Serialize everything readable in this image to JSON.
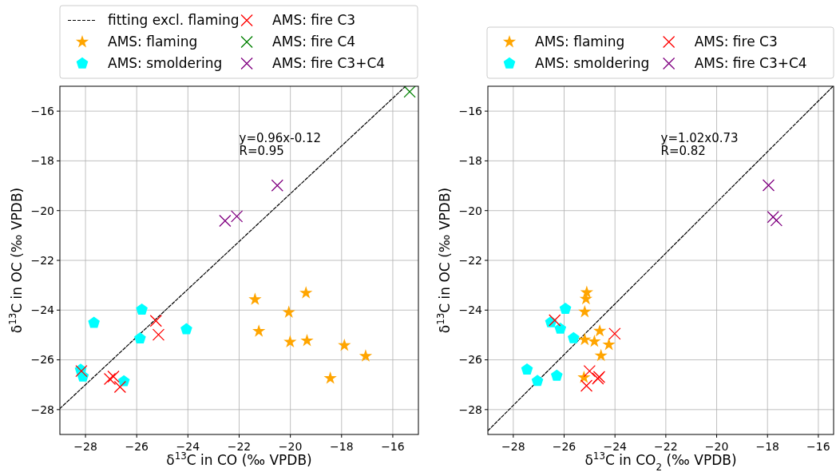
{
  "chart_data": [
    {
      "type": "scatter",
      "xlabel": "δ$^{13}$C in CO (‰ VPDB)",
      "ylabel": "δ$^{13}$C in OC (‰ VPDB)",
      "xlim": [
        -29,
        -15
      ],
      "ylim": [
        -29,
        -15
      ],
      "xticks": [
        -28,
        -26,
        -24,
        -22,
        -20,
        -18,
        -16
      ],
      "yticks": [
        -28,
        -26,
        -24,
        -22,
        -20,
        -18,
        -16
      ],
      "grid": true,
      "legend": "top",
      "annotations": [
        "y=0.96x-0.12\nR=0.95"
      ],
      "series": [
        {
          "name": "fitting excl. flaming",
          "type": "line",
          "line_style": "dashed",
          "marker": "none",
          "color": "#000000",
          "x": [
            -29,
            -15.5
          ],
          "values": [
            -27.96,
            -15
          ]
        },
        {
          "name": "AMS: flaming",
          "marker": "star",
          "color": "#ffa500",
          "x": [
            -21.38,
            -19.39,
            -20.06,
            -21.23,
            -20.01,
            -19.35,
            -17.89,
            -17.06,
            -18.44
          ],
          "values": [
            -23.57,
            -23.31,
            -24.09,
            -24.85,
            -25.28,
            -25.23,
            -25.42,
            -25.85,
            -26.74
          ]
        },
        {
          "name": "AMS: smoldering",
          "color": "#00ffff",
          "x": [
            -27.67,
            -25.8,
            -25.87,
            -24.06,
            -28.19,
            -28.1,
            -26.5
          ],
          "values": [
            -24.51,
            -23.98,
            -25.14,
            -24.77,
            -26.4,
            -26.67,
            -26.86
          ]
        },
        {
          "name": "AMS: fire C3",
          "marker": "cross",
          "color": "#ff0000",
          "x": [
            -25.25,
            -25.15,
            -28.16,
            -26.91,
            -27.05,
            -26.65
          ],
          "values": [
            -24.43,
            -24.99,
            -26.45,
            -26.67,
            -26.77,
            -27.09
          ]
        },
        {
          "name": "AMS: fire C4",
          "marker": "cross",
          "color": "#008000",
          "x": [
            -15.34
          ],
          "values": [
            -15.22
          ]
        },
        {
          "name": "AMS: fire C3+C4",
          "marker": "cross",
          "color": "#800080",
          "x": [
            -20.51,
            -22.55,
            -22.09
          ],
          "values": [
            -18.99,
            -20.41,
            -20.23
          ]
        }
      ]
    },
    {
      "type": "scatter",
      "xlabel": "δ$^{13}$C in CO$_{2}$ (‰ VPDB)",
      "ylabel": "δ$^{13}$C in OC (‰ VPDB)",
      "xlim": [
        -29,
        -15.4
      ],
      "ylim": [
        -29,
        -15
      ],
      "xticks": [
        -28,
        -26,
        -24,
        -22,
        -20,
        -18,
        -16
      ],
      "yticks": [
        -28,
        -26,
        -24,
        -22,
        -20,
        -18,
        -16
      ],
      "grid": true,
      "legend": "top",
      "annotations": [
        "y=1.02x0.73\nR=0.82"
      ],
      "series": [
        {
          "type": "line",
          "line_style": "dashed",
          "marker": "none",
          "color": "#000000",
          "x": [
            -29,
            -15.42
          ],
          "values": [
            -28.85,
            -15
          ]
        },
        {
          "name": "AMS: flaming",
          "marker": "star",
          "color": "#ffa500",
          "x": [
            -25.11,
            -25.14,
            -25.19,
            -24.6,
            -25.19,
            -24.81,
            -24.24,
            -24.55,
            -25.22
          ],
          "values": [
            -23.29,
            -23.55,
            -24.07,
            -24.84,
            -25.19,
            -25.26,
            -25.39,
            -25.83,
            -26.71
          ]
        },
        {
          "name": "AMS: smoldering",
          "color": "#00ffff",
          "x": [
            -25.95,
            -26.52,
            -26.15,
            -25.63,
            -27.46,
            -27.05,
            -26.29
          ],
          "values": [
            -23.95,
            -24.49,
            -24.75,
            -25.13,
            -26.39,
            -26.85,
            -26.64
          ]
        },
        {
          "name": "AMS: fire C3",
          "marker": "cross",
          "color": "#ff0000",
          "x": [
            -26.37,
            -24.01,
            -25,
            -24.62,
            -24.67,
            -25.12
          ],
          "values": [
            -24.41,
            -24.95,
            -26.45,
            -26.69,
            -26.75,
            -27.04
          ]
        },
        {
          "name": "AMS: fire C3+C4",
          "marker": "cross",
          "color": "#800080",
          "x": [
            -17.96,
            -17.78,
            -17.65
          ],
          "values": [
            -18.98,
            -20.26,
            -20.39
          ]
        }
      ]
    }
  ]
}
